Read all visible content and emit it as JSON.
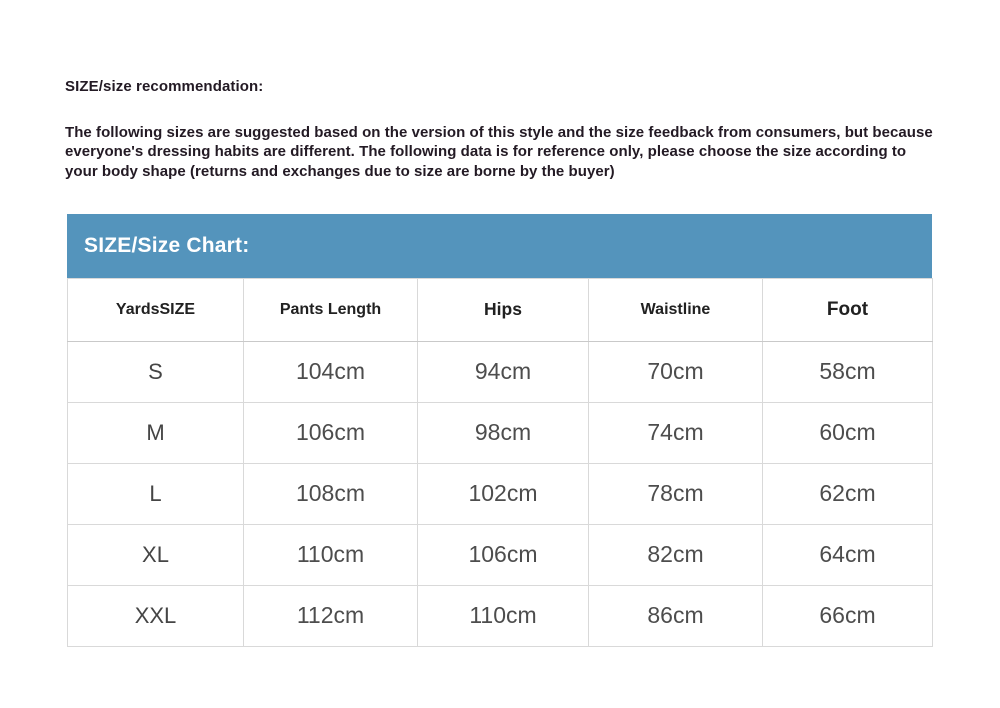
{
  "intro": {
    "heading": "SIZE/size recommendation:",
    "description": "The following sizes are suggested based on the version of this style and the size feedback from consumers, but because everyone's dressing habits are different. The following data is for reference only, please choose the size according to your body shape (returns and exchanges due to size are borne by the buyer)"
  },
  "size_chart": {
    "banner_title": "SIZE/Size Chart:",
    "banner_color": "#5494bc",
    "columns": [
      "YardsSIZE",
      "Pants Length",
      "Hips",
      "Waistline",
      "Foot"
    ],
    "rows": [
      [
        "S",
        "104cm",
        "94cm",
        "70cm",
        "58cm"
      ],
      [
        "M",
        "106cm",
        "98cm",
        "74cm",
        "60cm"
      ],
      [
        "L",
        "108cm",
        "102cm",
        "78cm",
        "62cm"
      ],
      [
        "XL",
        "110cm",
        "106cm",
        "82cm",
        "64cm"
      ],
      [
        "XXL",
        "112cm",
        "110cm",
        "86cm",
        "66cm"
      ]
    ]
  }
}
